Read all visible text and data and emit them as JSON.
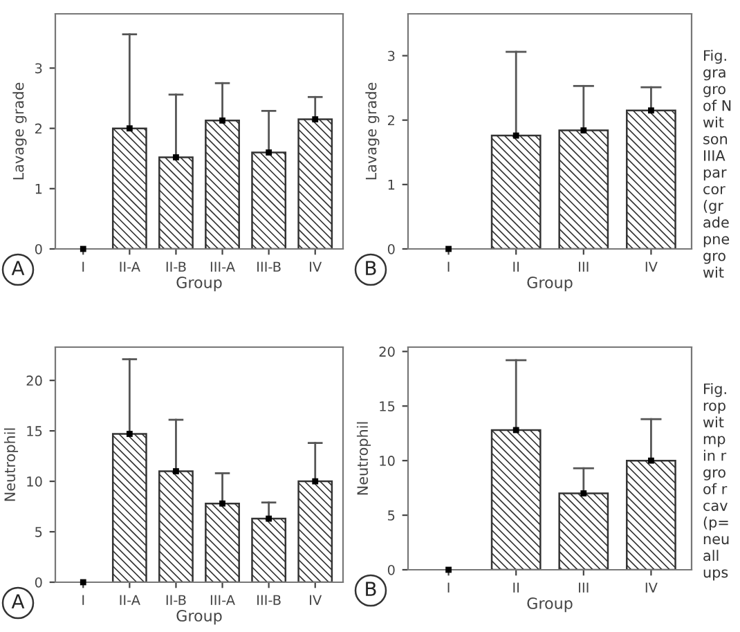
{
  "chart_data": [
    {
      "type": "bar",
      "xlabel": "Group",
      "ylabel": "Lavage grade",
      "categories": [
        "I",
        "II-A",
        "II-B",
        "III-A",
        "III-B",
        "IV"
      ],
      "ylim": [
        0,
        3.9
      ],
      "yticks": [
        0,
        1,
        2,
        3
      ],
      "marker": "square",
      "grid": false,
      "legend": false,
      "series": [
        {
          "color": "#333333",
          "values": [
            null,
            2.0,
            1.52,
            2.13,
            1.6,
            2.15
          ],
          "errors": [
            null,
            [
              2.0,
              3.56
            ],
            [
              1.52,
              2.56
            ],
            [
              2.13,
              2.75
            ],
            [
              1.6,
              2.29
            ],
            [
              2.15,
              2.52
            ]
          ]
        },
        {
          "type": "scatter",
          "color": "#000000",
          "values": [
            0,
            2.0,
            1.52,
            2.13,
            1.6,
            2.15
          ]
        }
      ],
      "annotations": [
        "A"
      ]
    },
    {
      "type": "bar",
      "xlabel": "Group",
      "ylabel": "Lavage grade",
      "categories": [
        "I",
        "II",
        "III",
        "IV"
      ],
      "ylim": [
        0,
        3.65
      ],
      "yticks": [
        0,
        1,
        2,
        3
      ],
      "marker": "square",
      "grid": false,
      "legend": false,
      "series": [
        {
          "color": "#333333",
          "values": [
            null,
            1.76,
            1.84,
            2.15
          ],
          "errors": [
            null,
            [
              1.76,
              3.06
            ],
            [
              1.84,
              2.53
            ],
            [
              2.15,
              2.51
            ]
          ]
        },
        {
          "type": "scatter",
          "color": "#000000",
          "values": [
            0,
            1.76,
            1.84,
            2.15
          ]
        }
      ],
      "annotations": [
        "B",
        "Fig.\ngra\ngro\nof N\nwit\nson\nIIIA\npar\ncor\n(gr\nade\npne\ngro\nwit"
      ]
    },
    {
      "type": "bar",
      "xlabel": "Group",
      "ylabel": "Neutrophil",
      "categories": [
        "I",
        "II-A",
        "II-B",
        "III-A",
        "III-B",
        "IV"
      ],
      "ylim": [
        0,
        23.3
      ],
      "yticks": [
        0,
        5,
        10,
        15,
        20
      ],
      "marker": "square",
      "grid": false,
      "legend": false,
      "series": [
        {
          "color": "#333333",
          "values": [
            null,
            14.7,
            11.0,
            7.8,
            6.3,
            10.0
          ],
          "errors": [
            null,
            [
              14.7,
              22.1
            ],
            [
              11.0,
              16.1
            ],
            [
              7.8,
              10.8
            ],
            [
              6.3,
              7.9
            ],
            [
              10.0,
              13.8
            ]
          ]
        },
        {
          "type": "scatter",
          "color": "#000000",
          "values": [
            0,
            14.7,
            11.0,
            7.8,
            6.3,
            10.0
          ]
        }
      ],
      "annotations": [
        "A"
      ]
    },
    {
      "type": "bar",
      "xlabel": "Group",
      "ylabel": "Neutrophil",
      "categories": [
        "I",
        "II",
        "III",
        "IV"
      ],
      "ylim": [
        0,
        20.4
      ],
      "yticks": [
        0,
        5,
        10,
        15,
        20
      ],
      "marker": "square",
      "grid": false,
      "legend": false,
      "series": [
        {
          "color": "#333333",
          "values": [
            null,
            12.8,
            7.0,
            10.0
          ],
          "errors": [
            null,
            [
              12.8,
              19.2
            ],
            [
              7.0,
              9.3
            ],
            [
              10.0,
              13.8
            ]
          ]
        },
        {
          "type": "scatter",
          "color": "#000000",
          "values": [
            0,
            12.8,
            7.0,
            10.0
          ]
        }
      ],
      "annotations": [
        "B",
        "Fig.\nrop\nwit\nmp\nin r\ngro\nof r\ncav\n(p=\nneu\nall\nups"
      ]
    }
  ]
}
